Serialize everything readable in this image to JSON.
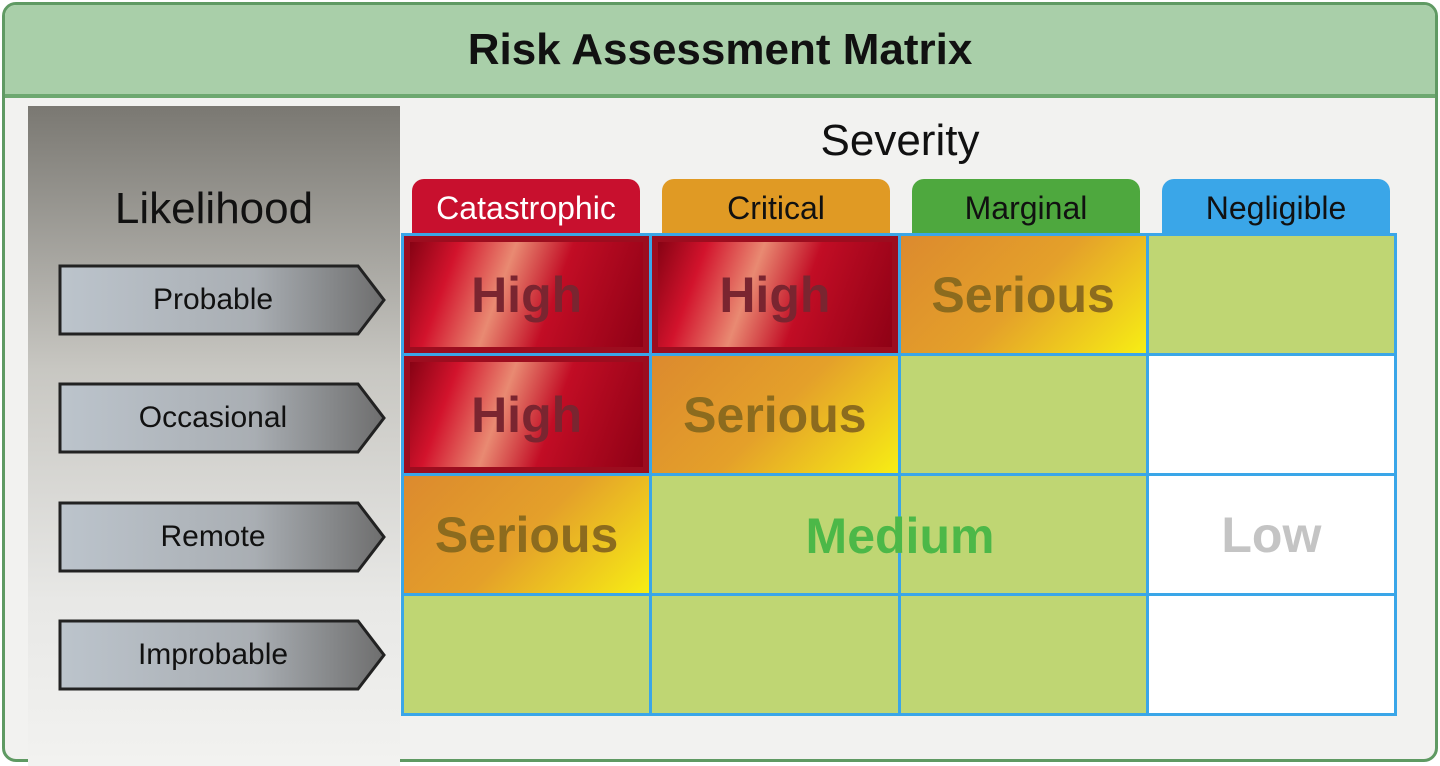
{
  "title": "Risk Assessment Matrix",
  "likelihood": {
    "label": "Likelihood",
    "levels": [
      "Probable",
      "Occasional",
      "Remote",
      "Improbable"
    ]
  },
  "severity": {
    "label": "Severity",
    "levels": [
      {
        "label": "Catastrophic",
        "color": "#c8102e",
        "text_color": "#ffffff"
      },
      {
        "label": "Critical",
        "color": "#e09a24",
        "text_color": "#111111"
      },
      {
        "label": "Marginal",
        "color": "#4ea83e",
        "text_color": "#111111"
      },
      {
        "label": "Negligible",
        "color": "#3aa6e8",
        "text_color": "#111111"
      }
    ]
  },
  "matrix": [
    [
      {
        "fill": "red",
        "text": "High"
      },
      {
        "fill": "red",
        "text": "High"
      },
      {
        "fill": "orange",
        "text": "Serious"
      },
      {
        "fill": "green",
        "text": ""
      }
    ],
    [
      {
        "fill": "red",
        "text": "High"
      },
      {
        "fill": "orange",
        "text": "Serious"
      },
      {
        "fill": "green",
        "text": ""
      },
      {
        "fill": "white",
        "text": ""
      }
    ],
    [
      {
        "fill": "orange",
        "text": "Serious"
      },
      {
        "fill": "green",
        "text": ""
      },
      {
        "fill": "green",
        "text": ""
      },
      {
        "fill": "white",
        "text": "Low"
      }
    ],
    [
      {
        "fill": "green",
        "text": ""
      },
      {
        "fill": "green",
        "text": ""
      },
      {
        "fill": "green",
        "text": ""
      },
      {
        "fill": "white",
        "text": ""
      }
    ]
  ],
  "medium_label": "Medium"
}
